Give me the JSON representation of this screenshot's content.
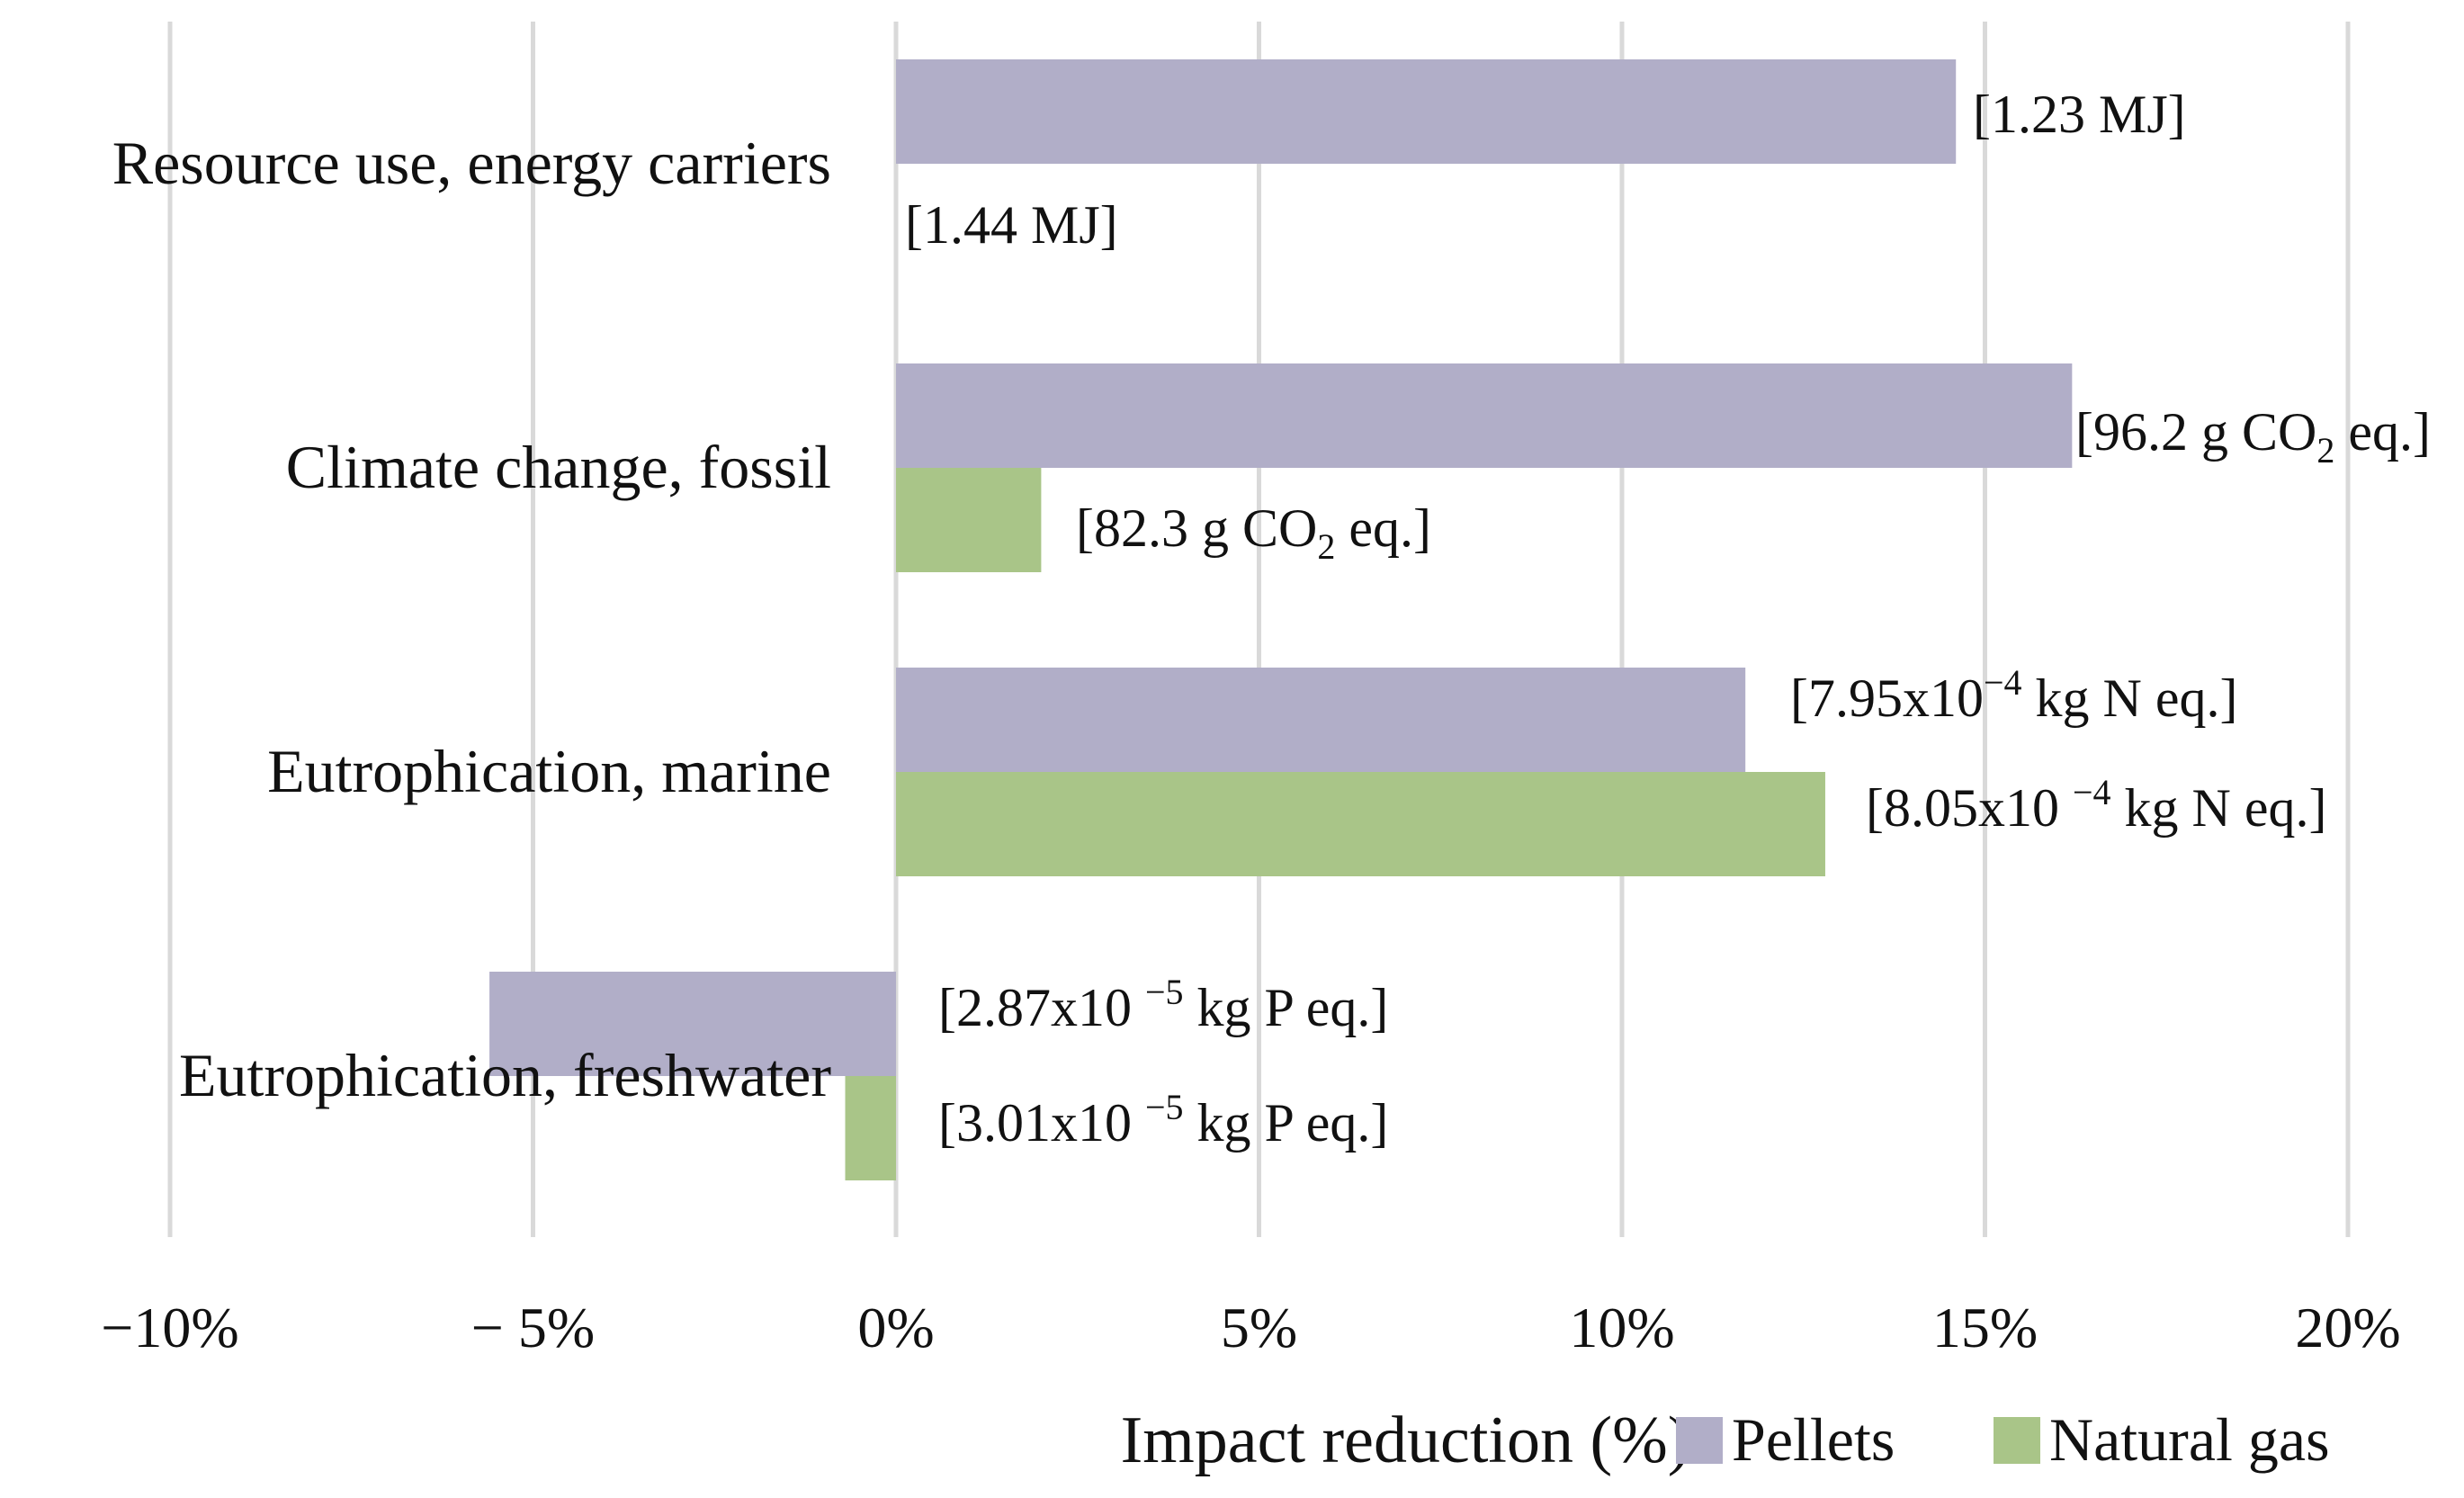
{
  "chart_data": {
    "type": "bar",
    "orientation": "horizontal",
    "xlabel": "Impact reduction (%)",
    "xlim": [
      -10,
      20
    ],
    "xticks": [
      -10,
      -5,
      0,
      5,
      10,
      15,
      20
    ],
    "tick_labels": [
      "−10%",
      "− 5%",
      "0%",
      "5%",
      "10%",
      "15%",
      "20%"
    ],
    "grid": true,
    "legend_position": "bottom-right",
    "categories": [
      "Resource use, energy carriers",
      "Climate change, fossil",
      "Eutrophication, marine",
      "Eutrophication, freshwater"
    ],
    "series": [
      {
        "name": "Pellets",
        "color": "#b1aec8",
        "values": [
          14.6,
          16.2,
          11.7,
          -5.6
        ],
        "labels": [
          {
            "pre": "[1.23 MJ]",
            "sub": "",
            "mid": "",
            "sup": "",
            "post": ""
          },
          {
            "pre": "[96.2 g CO",
            "sub": "2",
            "mid": " eq.]",
            "sup": "",
            "post": ""
          },
          {
            "pre": "[7.95x10",
            "sub": "",
            "mid": "",
            "sup": "−4",
            "post": " kg N eq.]"
          },
          {
            "pre": "[2.87x10 ",
            "sub": "",
            "mid": "",
            "sup": "−5",
            "post": " kg P eq.]"
          }
        ]
      },
      {
        "name": "Natural gas",
        "color": "#a9c588",
        "values": [
          0,
          2.0,
          12.8,
          -0.7
        ],
        "labels": [
          {
            "pre": "[1.44 MJ]",
            "sub": "",
            "mid": "",
            "sup": "",
            "post": ""
          },
          {
            "pre": "[82.3 g CO",
            "sub": "2",
            "mid": " eq.]",
            "sup": "",
            "post": ""
          },
          {
            "pre": "[8.05x10 ",
            "sub": "",
            "mid": "",
            "sup": "−4",
            "post": " kg N eq.]"
          },
          {
            "pre": "[3.01x10 ",
            "sub": "",
            "mid": "",
            "sup": "−5",
            "post": " kg P eq.]"
          }
        ]
      }
    ]
  }
}
